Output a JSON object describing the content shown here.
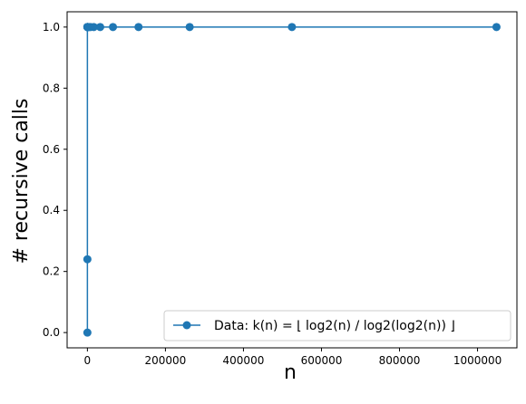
{
  "chart_data": {
    "type": "line",
    "title": "",
    "xlabel": "n",
    "ylabel": "# recursive calls",
    "xlim": [
      -52000,
      1101000
    ],
    "ylim": [
      -0.05,
      1.05
    ],
    "x_ticks": [
      0,
      200000,
      400000,
      600000,
      800000,
      1000000
    ],
    "x_tick_labels": [
      "0",
      "200000",
      "400000",
      "600000",
      "800000",
      "1000000"
    ],
    "y_ticks": [
      0.0,
      0.2,
      0.4,
      0.6,
      0.8,
      1.0
    ],
    "y_tick_labels": [
      "0.0",
      "0.2",
      "0.4",
      "0.6",
      "0.8",
      "1.0"
    ],
    "grid": false,
    "legend_position": "bottom-right",
    "series": [
      {
        "name": "Data: k(n) = ⌊ log2(n) / log2(log2(n)) ⌋",
        "color": "#1f77b4",
        "marker": "circle",
        "x": [
          2,
          4,
          8,
          16,
          32,
          64,
          128,
          256,
          512,
          1024,
          2048,
          4096,
          8192,
          16384,
          32768,
          65536,
          131072,
          262144,
          524288,
          1048576
        ],
        "y": [
          0.0,
          0.24,
          1.0,
          1.0,
          1.0,
          1.0,
          1.0,
          1.0,
          1.0,
          1.0,
          1.0,
          1.0,
          1.0,
          1.0,
          1.0,
          1.0,
          1.0,
          1.0,
          1.0,
          1.0
        ]
      }
    ]
  }
}
